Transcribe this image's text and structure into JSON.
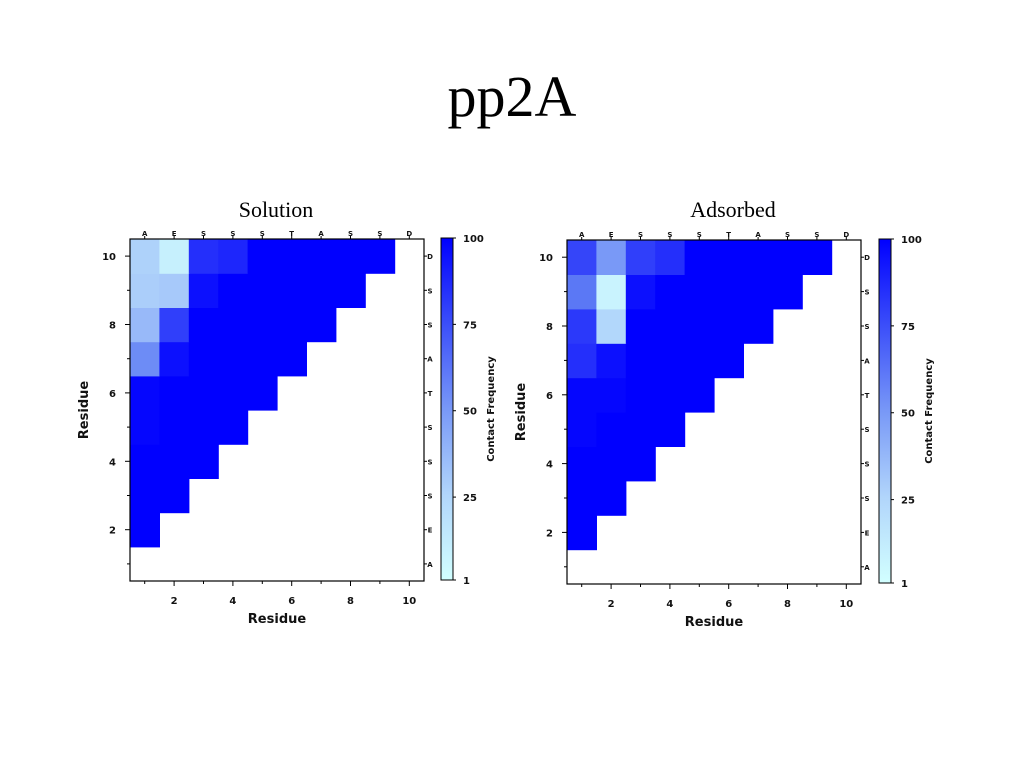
{
  "slide_title": "pp2A",
  "chart_data": [
    {
      "type": "heatmap",
      "title": "Solution",
      "xlabel": "Residue",
      "ylabel": "Residue",
      "xlim": [
        0.5,
        10.5
      ],
      "ylim": [
        0.5,
        10.5
      ],
      "x_ticks": [
        2,
        4,
        6,
        8,
        10
      ],
      "y_ticks": [
        2,
        4,
        6,
        8,
        10
      ],
      "sequence": [
        "A",
        "E",
        "S",
        "S",
        "S",
        "T",
        "A",
        "S",
        "S",
        "D"
      ],
      "colorbar": {
        "label": "Contact Frequency",
        "ticks": [
          1,
          25,
          50,
          75,
          100
        ],
        "range": [
          1,
          100
        ]
      },
      "rows": [
        {
          "y": 2,
          "values": [
            100
          ]
        },
        {
          "y": 3,
          "values": [
            100,
            100
          ]
        },
        {
          "y": 4,
          "values": [
            100,
            100,
            100
          ]
        },
        {
          "y": 5,
          "values": [
            98,
            100,
            100,
            100
          ]
        },
        {
          "y": 6,
          "values": [
            98,
            100,
            100,
            100,
            100
          ]
        },
        {
          "y": 7,
          "values": [
            55,
            95,
            100,
            100,
            100,
            100
          ]
        },
        {
          "y": 8,
          "values": [
            38,
            80,
            100,
            100,
            100,
            100,
            100
          ]
        },
        {
          "y": 9,
          "values": [
            30,
            32,
            95,
            100,
            100,
            100,
            100,
            100
          ]
        },
        {
          "y": 10,
          "values": [
            28,
            10,
            85,
            88,
            100,
            100,
            100,
            100,
            100
          ]
        }
      ]
    },
    {
      "type": "heatmap",
      "title": "Adsorbed",
      "xlabel": "Residue",
      "ylabel": "Residue",
      "xlim": [
        0.5,
        10.5
      ],
      "ylim": [
        0.5,
        10.5
      ],
      "x_ticks": [
        2,
        4,
        6,
        8,
        10
      ],
      "y_ticks": [
        2,
        4,
        6,
        8,
        10
      ],
      "sequence": [
        "A",
        "E",
        "S",
        "S",
        "S",
        "T",
        "A",
        "S",
        "S",
        "D"
      ],
      "colorbar": {
        "label": "Contact Frequency",
        "ticks": [
          1,
          25,
          50,
          75,
          100
        ],
        "range": [
          1,
          100
        ]
      },
      "rows": [
        {
          "y": 2,
          "values": [
            100
          ]
        },
        {
          "y": 3,
          "values": [
            100,
            100
          ]
        },
        {
          "y": 4,
          "values": [
            100,
            100,
            100
          ]
        },
        {
          "y": 5,
          "values": [
            98,
            100,
            100,
            100
          ]
        },
        {
          "y": 6,
          "values": [
            98,
            98,
            100,
            100,
            100
          ]
        },
        {
          "y": 7,
          "values": [
            85,
            95,
            100,
            100,
            100,
            100
          ]
        },
        {
          "y": 8,
          "values": [
            82,
            25,
            100,
            100,
            100,
            100,
            100
          ]
        },
        {
          "y": 9,
          "values": [
            62,
            8,
            95,
            100,
            100,
            100,
            100,
            100
          ]
        },
        {
          "y": 10,
          "values": [
            78,
            50,
            80,
            85,
            100,
            100,
            100,
            100,
            100
          ]
        }
      ]
    }
  ]
}
